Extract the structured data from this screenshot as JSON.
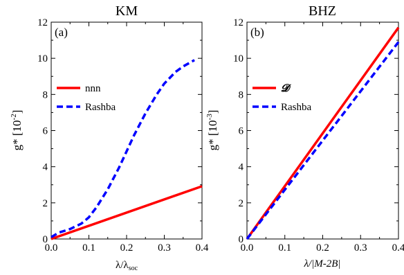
{
  "chart_data": [
    {
      "type": "line",
      "title": "KM",
      "panel_label": "(a)",
      "xlabel": "λ/λ",
      "xlabel_sub": "soc",
      "ylabel": "g* [10",
      "ylabel_sup": "-2",
      "ylabel_end": "]",
      "xlim": [
        0,
        0.4
      ],
      "ylim": [
        0,
        12
      ],
      "xticks": [
        0.0,
        0.1,
        0.2,
        0.3,
        0.4
      ],
      "xtick_labels": [
        "0.0",
        "0.1",
        "0.2",
        "0.3",
        "0.4"
      ],
      "yticks": [
        0,
        2,
        4,
        6,
        8,
        10,
        12
      ],
      "ytick_labels": [
        "0",
        "2",
        "4",
        "6",
        "8",
        "10",
        "12"
      ],
      "legend_position": "middle-left",
      "series": [
        {
          "name": "nnn",
          "color": "#ff0000",
          "dash": "solid",
          "x": [
            0,
            0.4
          ],
          "y": [
            0,
            2.92
          ]
        },
        {
          "name": "Rashba",
          "color": "#0000ff",
          "dash": "dashed",
          "x": [
            0,
            0.02,
            0.05,
            0.08,
            0.1,
            0.12,
            0.15,
            0.18,
            0.2,
            0.22,
            0.25,
            0.28,
            0.3,
            0.33,
            0.35,
            0.38
          ],
          "y": [
            0.1,
            0.35,
            0.55,
            0.85,
            1.2,
            1.75,
            2.75,
            3.95,
            4.85,
            5.75,
            6.95,
            8.0,
            8.6,
            9.25,
            9.55,
            9.9
          ]
        }
      ]
    },
    {
      "type": "line",
      "title": "BHZ",
      "panel_label": "(b)",
      "xlabel": "λ/|M-2B|",
      "ylabel": "g* [10",
      "ylabel_sup": "-3",
      "ylabel_end": "]",
      "xlim": [
        0,
        0.4
      ],
      "ylim": [
        0,
        12
      ],
      "xticks": [
        0.0,
        0.1,
        0.2,
        0.3,
        0.4
      ],
      "xtick_labels": [
        "0.0",
        "0.1",
        "0.2",
        "0.3",
        "0.4"
      ],
      "yticks": [
        0,
        2,
        4,
        6,
        8,
        10,
        12
      ],
      "ytick_labels": [
        "0",
        "2",
        "4",
        "6",
        "8",
        "10",
        "12"
      ],
      "legend_position": "middle-left",
      "series": [
        {
          "name": "𝓓",
          "color": "#ff0000",
          "dash": "solid",
          "x": [
            0,
            0.4
          ],
          "y": [
            0,
            11.7
          ]
        },
        {
          "name": "Rashba",
          "color": "#0000ff",
          "dash": "dashed",
          "x": [
            0,
            0.4
          ],
          "y": [
            0,
            10.9
          ]
        }
      ]
    }
  ]
}
